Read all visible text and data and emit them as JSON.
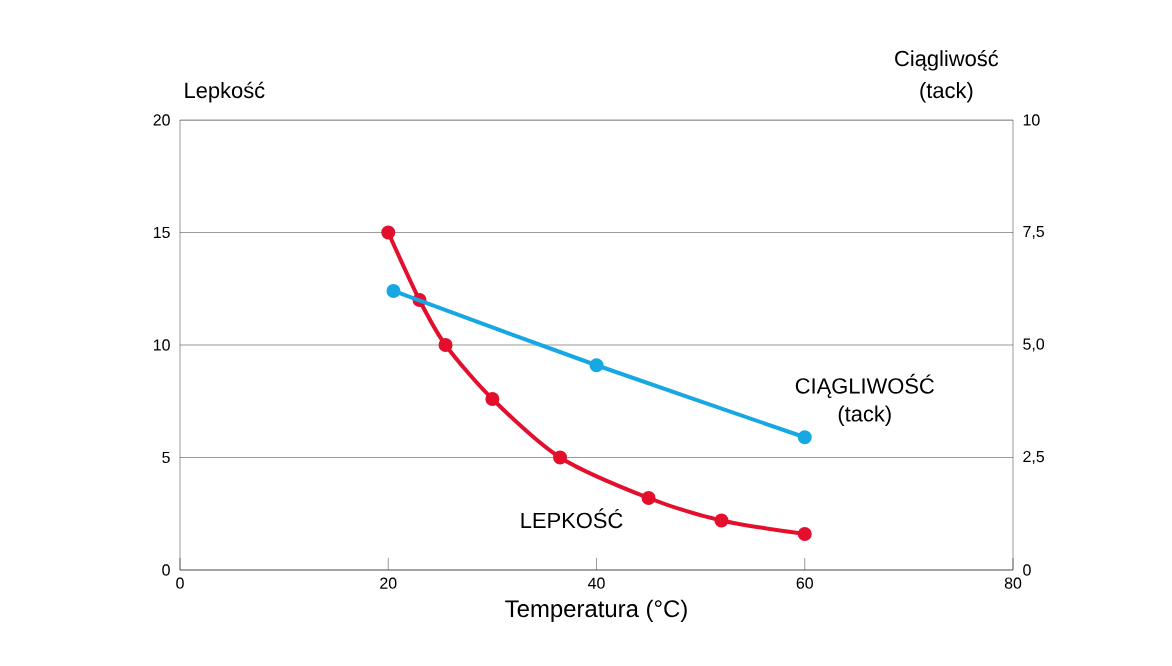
{
  "chart_data": {
    "type": "line",
    "xlabel": "Temperatura (°C)",
    "ylabel": "Lepkość",
    "y2label": "Ciągliwość (tack)",
    "xlim": [
      0,
      80
    ],
    "xticks": [
      0,
      20,
      40,
      60,
      80
    ],
    "ylim": [
      0,
      20
    ],
    "yticks": [
      0,
      5,
      10,
      15,
      20
    ],
    "y2lim": [
      0,
      10
    ],
    "y2ticks": [
      0,
      {
        "value": 2.5,
        "label": "2,5"
      },
      {
        "value": 5,
        "label": "5,0"
      },
      {
        "value": 7.5,
        "label": "7,5"
      },
      10
    ],
    "grid": "y",
    "marker": "circle",
    "line_style": "solid",
    "series": [
      {
        "name": "LEPKOŚĆ",
        "color": "#e30f2d",
        "x": [
          20,
          23,
          25.5,
          30,
          36.5,
          45,
          52,
          60
        ],
        "values": [
          15,
          12,
          10,
          7.6,
          5,
          3.2,
          2.2,
          1.6
        ]
      },
      {
        "name": "CIĄGLIWOŚĆ (tack)",
        "color": "#17a8e3",
        "axis": "y2",
        "x": [
          20.5,
          40,
          60
        ],
        "values": [
          6.2,
          4.55,
          2.95
        ]
      }
    ]
  }
}
